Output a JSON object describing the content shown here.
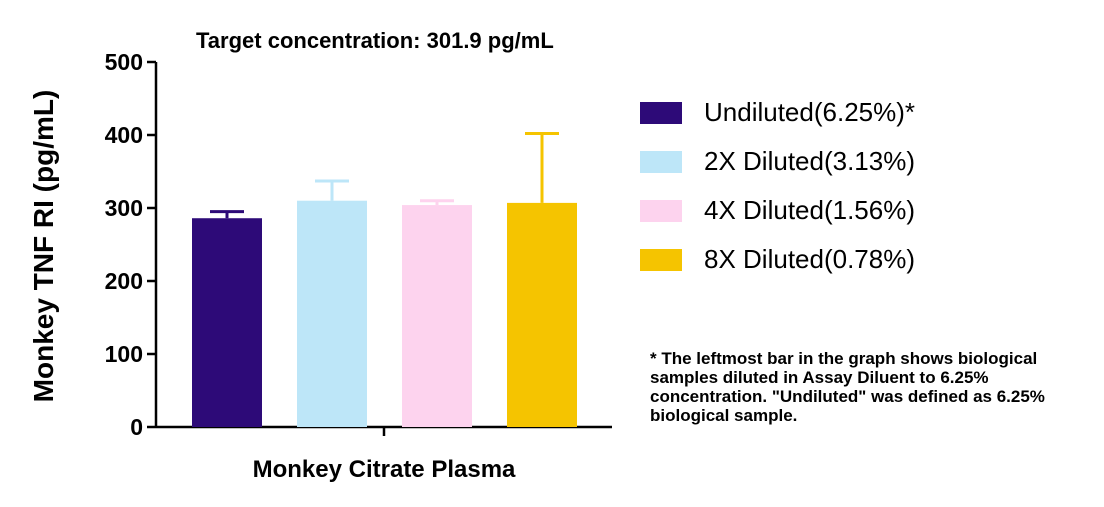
{
  "chart_data": {
    "type": "bar",
    "title": "Target concentration: 301.9 pg/mL",
    "xlabel": "Monkey Citrate Plasma",
    "ylabel": "Monkey TNF RI (pg/mL)",
    "ylim": [
      0,
      500
    ],
    "yticks": [
      0,
      100,
      200,
      300,
      400,
      500
    ],
    "ytick_labels": [
      "0",
      "100",
      "200",
      "300",
      "400",
      "500"
    ],
    "categories": [
      "Monkey Citrate Plasma"
    ],
    "series": [
      {
        "name": "Undiluted(6.25%)*",
        "values": [
          286
        ],
        "error": [
          9
        ],
        "color": "#2d0a78"
      },
      {
        "name": "2X Diluted(3.13%)",
        "values": [
          310
        ],
        "error": [
          27
        ],
        "color": "#bde6f8"
      },
      {
        "name": "4X Diluted(1.56%)",
        "values": [
          304
        ],
        "error": [
          6
        ],
        "color": "#fdd3ee"
      },
      {
        "name": "8X Diluted(0.78%)",
        "values": [
          307
        ],
        "error": [
          95
        ],
        "color": "#f5c400"
      }
    ],
    "legend_position": "right",
    "grid": false
  },
  "footnote": "* The leftmost bar in the graph shows biological samples diluted in Assay Diluent to 6.25% concentration. \"Undiluted\" was defined as 6.25% biological sample."
}
